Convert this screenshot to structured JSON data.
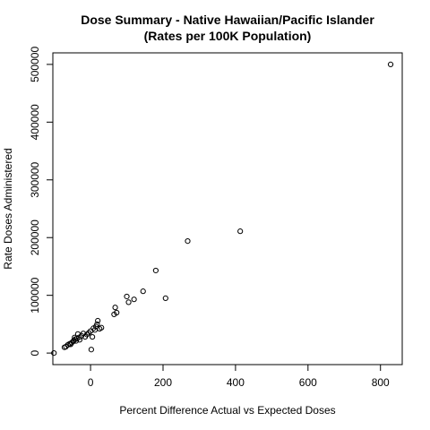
{
  "chart_data": {
    "type": "scatter",
    "title": "Dose Summary - Native Hawaiian/Pacific Islander",
    "subtitle": "(Rates per 100K Population)",
    "xlabel": "Percent Difference Actual vs Expected Doses",
    "ylabel": "Rate Doses Administered",
    "xlim": [
      -104,
      860
    ],
    "ylim": [
      -20000,
      520000
    ],
    "xticks": [
      0,
      200,
      400,
      600,
      800
    ],
    "yticks": [
      0,
      100000,
      200000,
      300000,
      400000,
      500000
    ],
    "xtick_labels": [
      "0",
      "200",
      "400",
      "600",
      "800"
    ],
    "ytick_labels": [
      "0",
      "100000",
      "200000",
      "300000",
      "400000",
      "500000"
    ],
    "grid": false,
    "legend": "none",
    "marker": "open-circle",
    "color": "#000000",
    "points": [
      {
        "x": -101,
        "y": 0
      },
      {
        "x": -72,
        "y": 10000
      },
      {
        "x": -68,
        "y": 11000
      },
      {
        "x": -63,
        "y": 14000
      },
      {
        "x": -58,
        "y": 16000
      },
      {
        "x": -55,
        "y": 15000
      },
      {
        "x": -52,
        "y": 18000
      },
      {
        "x": -48,
        "y": 20000
      },
      {
        "x": -46,
        "y": 22000
      },
      {
        "x": -44,
        "y": 27000
      },
      {
        "x": -42,
        "y": 24000
      },
      {
        "x": -40,
        "y": 21000
      },
      {
        "x": -38,
        "y": 25000
      },
      {
        "x": -35,
        "y": 33000
      },
      {
        "x": -32,
        "y": 27000
      },
      {
        "x": -30,
        "y": 23000
      },
      {
        "x": -25,
        "y": 30000
      },
      {
        "x": -20,
        "y": 34000
      },
      {
        "x": -15,
        "y": 28000
      },
      {
        "x": -10,
        "y": 32000
      },
      {
        "x": -5,
        "y": 35000
      },
      {
        "x": 0,
        "y": 38000
      },
      {
        "x": 2,
        "y": 6000
      },
      {
        "x": 5,
        "y": 28000
      },
      {
        "x": 8,
        "y": 43000
      },
      {
        "x": 12,
        "y": 40000
      },
      {
        "x": 15,
        "y": 46000
      },
      {
        "x": 18,
        "y": 50000
      },
      {
        "x": 20,
        "y": 56000
      },
      {
        "x": 25,
        "y": 42000
      },
      {
        "x": 30,
        "y": 44000
      },
      {
        "x": 65,
        "y": 67000
      },
      {
        "x": 68,
        "y": 79000
      },
      {
        "x": 72,
        "y": 70000
      },
      {
        "x": 100,
        "y": 98000
      },
      {
        "x": 105,
        "y": 88000
      },
      {
        "x": 120,
        "y": 93000
      },
      {
        "x": 145,
        "y": 107000
      },
      {
        "x": 180,
        "y": 143000
      },
      {
        "x": 207,
        "y": 95000
      },
      {
        "x": 268,
        "y": 194000
      },
      {
        "x": 413,
        "y": 211000
      },
      {
        "x": 828,
        "y": 500000
      }
    ]
  }
}
